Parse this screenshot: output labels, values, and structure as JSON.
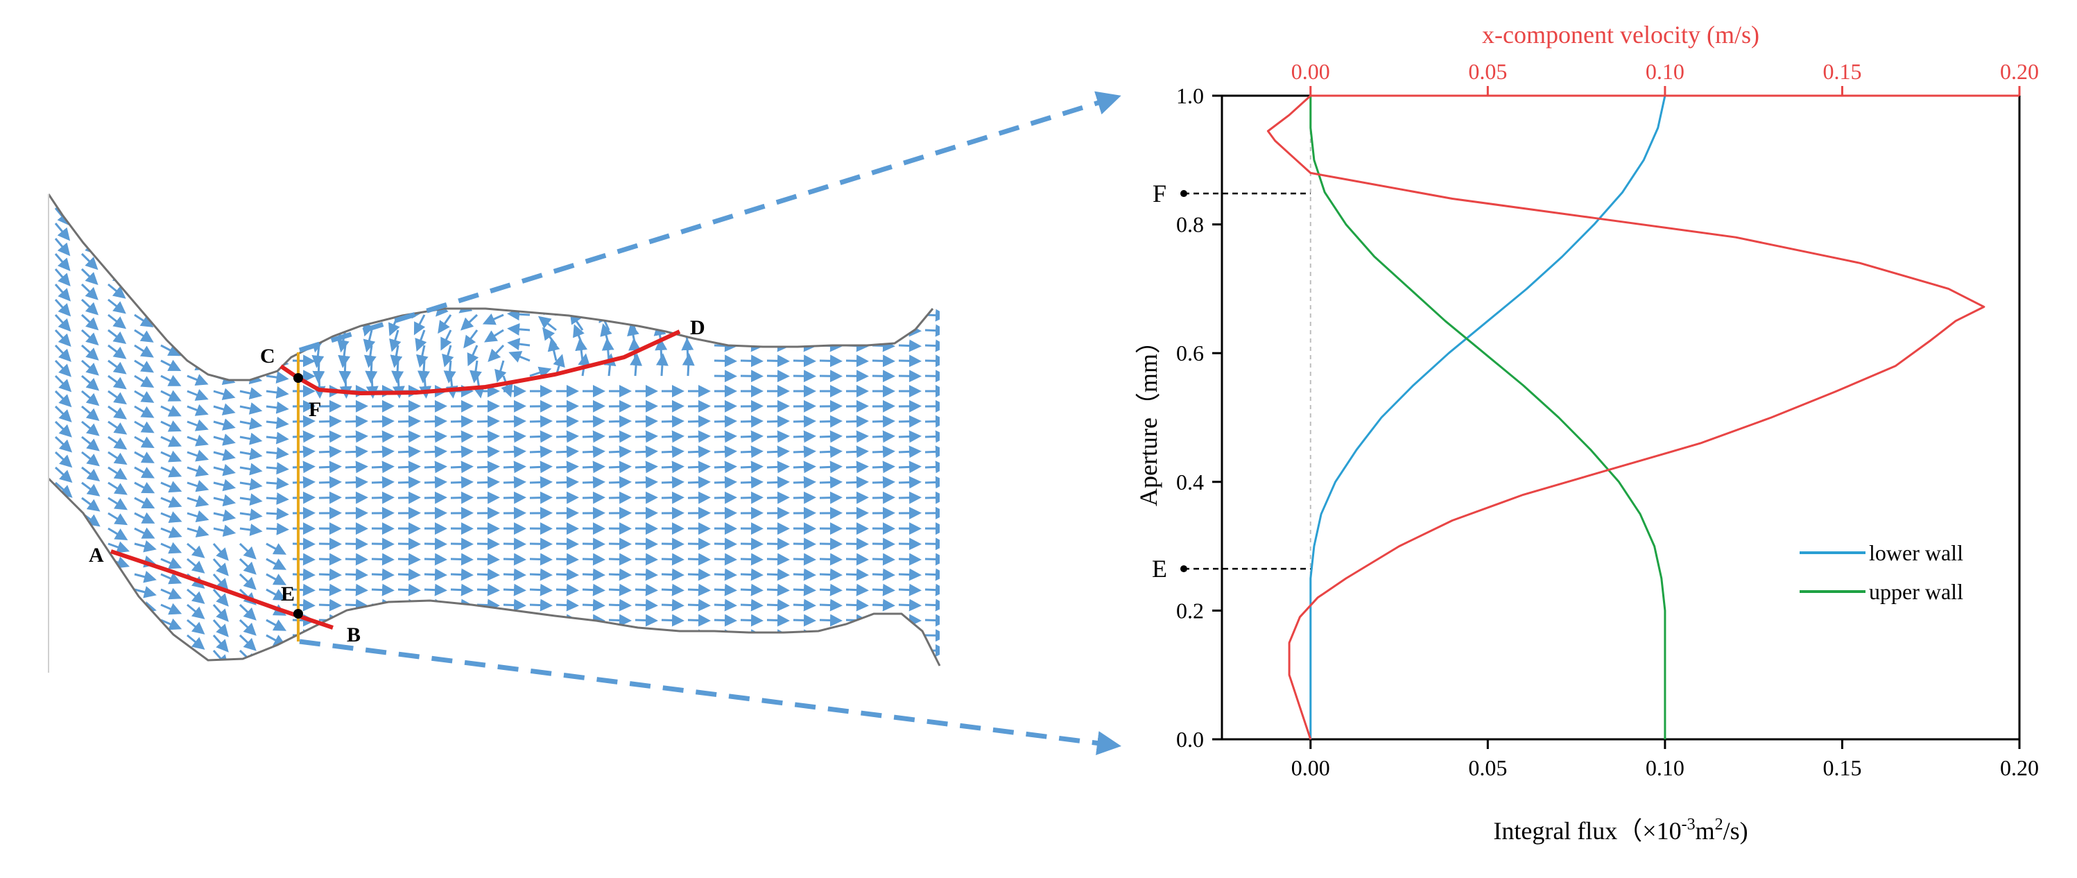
{
  "chart_data": {
    "type": "line",
    "x_bottom": {
      "label_prefix": "Integral flux（×10",
      "label_exp": "-3",
      "label_mid": "m",
      "label_exp2": "2",
      "label_suffix": "/s)",
      "range": [
        -0.025,
        0.2
      ],
      "ticks": [
        "0.00",
        "0.05",
        "0.10",
        "0.15",
        "0.20"
      ]
    },
    "x_top": {
      "label": "x-component velocity (m/s)",
      "range": [
        -0.025,
        0.2
      ],
      "ticks": [
        "0.00",
        "0.05",
        "0.10",
        "0.15",
        "0.20"
      ]
    },
    "y": {
      "label": "Aperture（mm）",
      "range": [
        0,
        1
      ],
      "ticks": [
        "0.0",
        "0.2",
        "0.4",
        "0.6",
        "0.8",
        "1.0"
      ]
    },
    "markers": [
      {
        "label": "E",
        "y": 0.265
      },
      {
        "label": "F",
        "y": 0.848
      }
    ],
    "legend_position": "lower-right",
    "series": [
      {
        "name": "lower wall",
        "color": "#2b9fd3",
        "axis": "bottom",
        "points": [
          [
            0.0,
            0.0
          ],
          [
            0.0,
            0.1
          ],
          [
            0.0,
            0.2
          ],
          [
            0.0,
            0.25
          ],
          [
            0.001,
            0.3
          ],
          [
            0.003,
            0.35
          ],
          [
            0.007,
            0.4
          ],
          [
            0.013,
            0.45
          ],
          [
            0.02,
            0.5
          ],
          [
            0.029,
            0.55
          ],
          [
            0.039,
            0.6
          ],
          [
            0.05,
            0.65
          ],
          [
            0.061,
            0.7
          ],
          [
            0.071,
            0.75
          ],
          [
            0.08,
            0.8
          ],
          [
            0.088,
            0.85
          ],
          [
            0.094,
            0.9
          ],
          [
            0.098,
            0.95
          ],
          [
            0.1,
            1.0
          ]
        ]
      },
      {
        "name": "upper wall",
        "color": "#1fa244",
        "axis": "bottom",
        "points": [
          [
            0.1,
            0.0
          ],
          [
            0.1,
            0.1
          ],
          [
            0.1,
            0.2
          ],
          [
            0.099,
            0.25
          ],
          [
            0.097,
            0.3
          ],
          [
            0.093,
            0.35
          ],
          [
            0.087,
            0.4
          ],
          [
            0.079,
            0.45
          ],
          [
            0.07,
            0.5
          ],
          [
            0.06,
            0.55
          ],
          [
            0.049,
            0.6
          ],
          [
            0.038,
            0.65
          ],
          [
            0.028,
            0.7
          ],
          [
            0.018,
            0.75
          ],
          [
            0.01,
            0.8
          ],
          [
            0.004,
            0.85
          ],
          [
            0.001,
            0.9
          ],
          [
            0.0,
            0.95
          ],
          [
            0.0,
            1.0
          ]
        ]
      },
      {
        "name": "",
        "color": "#e84545",
        "axis": "top",
        "points": [
          [
            0.0,
            0.0
          ],
          [
            -0.003,
            0.05
          ],
          [
            -0.006,
            0.1
          ],
          [
            -0.006,
            0.15
          ],
          [
            -0.003,
            0.19
          ],
          [
            0.002,
            0.22
          ],
          [
            0.01,
            0.25
          ],
          [
            0.025,
            0.3
          ],
          [
            0.04,
            0.34
          ],
          [
            0.06,
            0.38
          ],
          [
            0.085,
            0.42
          ],
          [
            0.11,
            0.46
          ],
          [
            0.13,
            0.5
          ],
          [
            0.148,
            0.54
          ],
          [
            0.165,
            0.58
          ],
          [
            0.175,
            0.62
          ],
          [
            0.182,
            0.65
          ],
          [
            0.19,
            0.672
          ],
          [
            0.18,
            0.7
          ],
          [
            0.155,
            0.74
          ],
          [
            0.12,
            0.78
          ],
          [
            0.08,
            0.81
          ],
          [
            0.04,
            0.84
          ],
          [
            0.01,
            0.87
          ],
          [
            0.0,
            0.88
          ],
          [
            -0.004,
            0.9
          ],
          [
            -0.01,
            0.93
          ],
          [
            -0.012,
            0.945
          ],
          [
            -0.006,
            0.97
          ],
          [
            0.0,
            1.0
          ],
          [
            0.2,
            1.0
          ]
        ]
      }
    ]
  },
  "flow_diagram": {
    "arrow_color": "#5a9bd5",
    "highlight_color": "#e02020",
    "section_line_color": "#e8a81a",
    "points": {
      "A": "A",
      "B": "B",
      "C": "C",
      "D": "D",
      "E": "E",
      "F": "F"
    }
  }
}
